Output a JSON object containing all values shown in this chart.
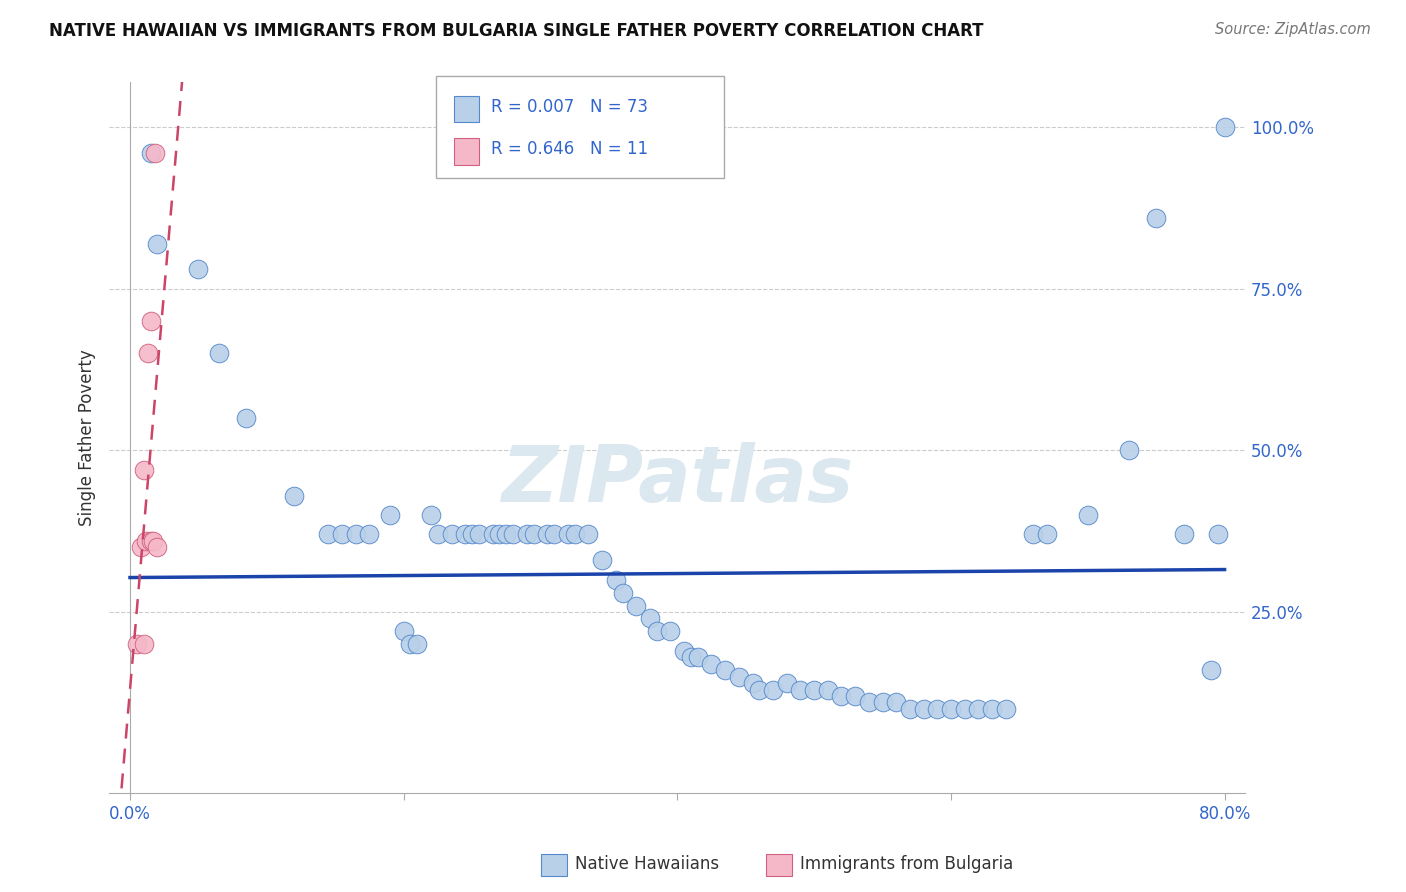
{
  "title": "NATIVE HAWAIIAN VS IMMIGRANTS FROM BULGARIA SINGLE FATHER POVERTY CORRELATION CHART",
  "source": "Source: ZipAtlas.com",
  "ylabel": "Single Father Poverty",
  "r_blue": 0.007,
  "n_blue": 73,
  "r_pink": 0.646,
  "n_pink": 11,
  "blue_color": "#b8d0e8",
  "blue_edge": "#5588cc",
  "pink_color": "#f5b8c8",
  "pink_edge": "#d06080",
  "trend_blue_color": "#1a44aa",
  "trend_pink_color": "#cc4466",
  "legend1": "Native Hawaiians",
  "legend2": "Immigrants from Bulgaria",
  "blue_x": [
    1.5,
    2.0,
    5.0,
    6.5,
    8.5,
    12.0,
    14.5,
    15.5,
    16.5,
    17.5,
    19.0,
    20.0,
    20.5,
    21.0,
    22.0,
    22.5,
    23.5,
    24.5,
    25.0,
    25.5,
    26.5,
    27.0,
    27.5,
    28.0,
    29.0,
    29.5,
    30.5,
    31.0,
    32.0,
    32.5,
    33.5,
    34.5,
    35.5,
    36.0,
    37.0,
    38.0,
    38.5,
    39.5,
    40.5,
    41.0,
    41.5,
    42.5,
    43.5,
    44.5,
    45.5,
    46.0,
    47.0,
    48.0,
    49.0,
    50.0,
    51.0,
    52.0,
    53.0,
    54.0,
    55.0,
    56.0,
    57.0,
    58.0,
    59.0,
    60.0,
    61.0,
    62.0,
    63.0,
    64.0,
    66.0,
    67.0,
    70.0,
    73.0,
    75.0,
    77.0,
    79.0,
    79.5,
    80.0
  ],
  "blue_y": [
    96.0,
    82.0,
    78.0,
    65.0,
    55.0,
    43.0,
    37.0,
    37.0,
    37.0,
    37.0,
    40.0,
    22.0,
    20.0,
    20.0,
    40.0,
    37.0,
    37.0,
    37.0,
    37.0,
    37.0,
    37.0,
    37.0,
    37.0,
    37.0,
    37.0,
    37.0,
    37.0,
    37.0,
    37.0,
    37.0,
    37.0,
    33.0,
    30.0,
    28.0,
    26.0,
    24.0,
    22.0,
    22.0,
    19.0,
    18.0,
    18.0,
    17.0,
    16.0,
    15.0,
    14.0,
    13.0,
    13.0,
    14.0,
    13.0,
    13.0,
    13.0,
    12.0,
    12.0,
    11.0,
    11.0,
    11.0,
    10.0,
    10.0,
    10.0,
    10.0,
    10.0,
    10.0,
    10.0,
    10.0,
    37.0,
    37.0,
    40.0,
    50.0,
    86.0,
    37.0,
    16.0,
    37.0,
    100.0
  ],
  "pink_x": [
    0.5,
    0.8,
    1.0,
    1.0,
    1.2,
    1.3,
    1.5,
    1.5,
    1.7,
    1.8,
    2.0
  ],
  "pink_y": [
    20.0,
    35.0,
    20.0,
    47.0,
    36.0,
    65.0,
    70.0,
    36.0,
    36.0,
    96.0,
    35.0
  ],
  "xmin": 0.0,
  "xmax": 80.0,
  "ymin": 0.0,
  "ymax": 107.0,
  "yticks": [
    0,
    25,
    50,
    75,
    100
  ],
  "xticks": [
    0,
    20,
    40,
    60,
    80
  ]
}
